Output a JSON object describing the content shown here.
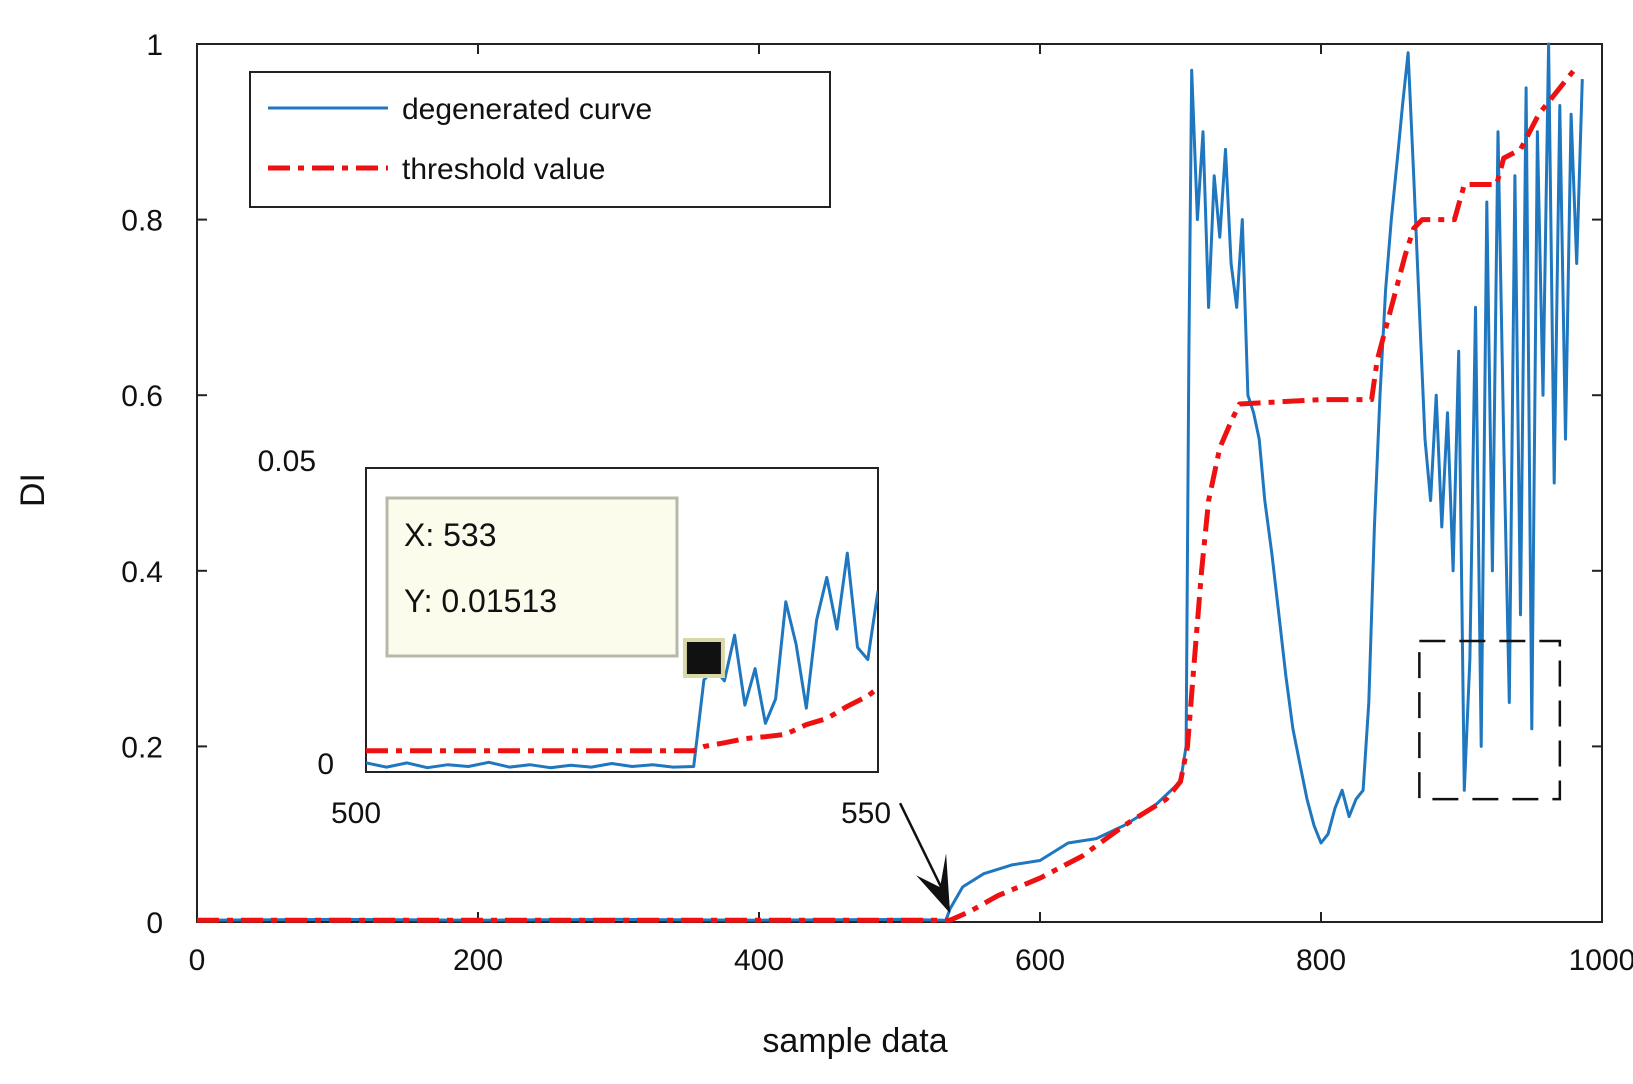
{
  "chart_data": [
    {
      "type": "line",
      "xlabel": "sample data",
      "ylabel": "DI",
      "xlim": [
        0,
        1000
      ],
      "ylim": [
        0,
        1
      ],
      "xticks": [
        0,
        200,
        400,
        600,
        800,
        1000
      ],
      "yticks": [
        0,
        0.2,
        0.4,
        0.6,
        0.8,
        1
      ],
      "xtick_labels": [
        "0",
        "200",
        "400",
        "600",
        "800",
        "1000"
      ],
      "ytick_labels": [
        "0",
        "0.2",
        "0.4",
        "0.6",
        "0.8",
        "1"
      ],
      "legend": {
        "position": "top-left",
        "entries": [
          "degenerated curve",
          "threshold value"
        ]
      },
      "series": [
        {
          "name": "degenerated curve",
          "color": "#1f77c0",
          "style": "solid",
          "points": [
            [
              0,
              0.002
            ],
            [
              100,
              0.003
            ],
            [
              200,
              0.002
            ],
            [
              300,
              0.003
            ],
            [
              400,
              0.002
            ],
            [
              500,
              0.003
            ],
            [
              533,
              0.002
            ],
            [
              536,
              0.015
            ],
            [
              545,
              0.04
            ],
            [
              560,
              0.055
            ],
            [
              580,
              0.065
            ],
            [
              600,
              0.07
            ],
            [
              620,
              0.09
            ],
            [
              640,
              0.095
            ],
            [
              660,
              0.11
            ],
            [
              680,
              0.13
            ],
            [
              700,
              0.16
            ],
            [
              704,
              0.2
            ],
            [
              706,
              0.65
            ],
            [
              708,
              0.97
            ],
            [
              712,
              0.8
            ],
            [
              716,
              0.9
            ],
            [
              720,
              0.7
            ],
            [
              724,
              0.85
            ],
            [
              728,
              0.78
            ],
            [
              732,
              0.88
            ],
            [
              736,
              0.75
            ],
            [
              740,
              0.7
            ],
            [
              744,
              0.8
            ],
            [
              748,
              0.6
            ],
            [
              752,
              0.58
            ],
            [
              756,
              0.55
            ],
            [
              760,
              0.48
            ],
            [
              765,
              0.42
            ],
            [
              770,
              0.35
            ],
            [
              775,
              0.28
            ],
            [
              780,
              0.22
            ],
            [
              785,
              0.18
            ],
            [
              790,
              0.14
            ],
            [
              795,
              0.11
            ],
            [
              800,
              0.09
            ],
            [
              805,
              0.1
            ],
            [
              810,
              0.13
            ],
            [
              815,
              0.15
            ],
            [
              820,
              0.12
            ],
            [
              825,
              0.14
            ],
            [
              830,
              0.15
            ],
            [
              834,
              0.25
            ],
            [
              838,
              0.45
            ],
            [
              842,
              0.6
            ],
            [
              846,
              0.72
            ],
            [
              850,
              0.8
            ],
            [
              855,
              0.88
            ],
            [
              858,
              0.93
            ],
            [
              862,
              0.99
            ],
            [
              866,
              0.85
            ],
            [
              870,
              0.7
            ],
            [
              874,
              0.55
            ],
            [
              878,
              0.48
            ],
            [
              882,
              0.6
            ],
            [
              886,
              0.45
            ],
            [
              890,
              0.58
            ],
            [
              894,
              0.4
            ],
            [
              898,
              0.65
            ],
            [
              902,
              0.15
            ],
            [
              906,
              0.3
            ],
            [
              910,
              0.7
            ],
            [
              914,
              0.2
            ],
            [
              918,
              0.82
            ],
            [
              922,
              0.4
            ],
            [
              926,
              0.9
            ],
            [
              930,
              0.55
            ],
            [
              934,
              0.25
            ],
            [
              938,
              0.85
            ],
            [
              942,
              0.35
            ],
            [
              946,
              0.95
            ],
            [
              950,
              0.22
            ],
            [
              954,
              0.9
            ],
            [
              958,
              0.6
            ],
            [
              962,
              1.0
            ],
            [
              966,
              0.5
            ],
            [
              970,
              0.93
            ],
            [
              974,
              0.55
            ],
            [
              978,
              0.92
            ],
            [
              982,
              0.75
            ],
            [
              986,
              0.96
            ]
          ]
        },
        {
          "name": "threshold value",
          "color": "#ee1111",
          "style": "dashdot",
          "points": [
            [
              0,
              0.002
            ],
            [
              200,
              0.002
            ],
            [
              400,
              0.002
            ],
            [
              536,
              0.002
            ],
            [
              550,
              0.012
            ],
            [
              570,
              0.03
            ],
            [
              600,
              0.05
            ],
            [
              630,
              0.075
            ],
            [
              660,
              0.11
            ],
            [
              690,
              0.14
            ],
            [
              700,
              0.16
            ],
            [
              705,
              0.2
            ],
            [
              710,
              0.3
            ],
            [
              715,
              0.4
            ],
            [
              720,
              0.48
            ],
            [
              728,
              0.54
            ],
            [
              736,
              0.57
            ],
            [
              742,
              0.59
            ],
            [
              800,
              0.595
            ],
            [
              836,
              0.595
            ],
            [
              840,
              0.64
            ],
            [
              850,
              0.7
            ],
            [
              860,
              0.76
            ],
            [
              866,
              0.79
            ],
            [
              872,
              0.8
            ],
            [
              895,
              0.8
            ],
            [
              902,
              0.84
            ],
            [
              925,
              0.84
            ],
            [
              930,
              0.87
            ],
            [
              942,
              0.88
            ],
            [
              955,
              0.92
            ],
            [
              970,
              0.95
            ],
            [
              980,
              0.97
            ]
          ]
        }
      ],
      "annotations": {
        "zoom_box": {
          "x": [
            870,
            970
          ],
          "y": [
            0.14,
            0.32
          ]
        },
        "arrow_target": {
          "x": 536,
          "y": 0.01
        }
      }
    },
    {
      "type": "line",
      "role": "inset",
      "xlim": [
        500,
        550
      ],
      "ylim": [
        0,
        0.05
      ],
      "xtick_labels": [
        "500",
        "550"
      ],
      "ytick_labels": [
        "0",
        "0.05"
      ],
      "series": [
        {
          "name": "degenerated curve",
          "color": "#1f77c0",
          "points": [
            [
              500,
              0.0015
            ],
            [
              502,
              0.0008
            ],
            [
              504,
              0.0015
            ],
            [
              506,
              0.0007
            ],
            [
              508,
              0.0012
            ],
            [
              510,
              0.0009
            ],
            [
              512,
              0.0016
            ],
            [
              514,
              0.0008
            ],
            [
              516,
              0.0012
            ],
            [
              518,
              0.0007
            ],
            [
              520,
              0.0011
            ],
            [
              522,
              0.0008
            ],
            [
              524,
              0.0014
            ],
            [
              526,
              0.0009
            ],
            [
              528,
              0.0012
            ],
            [
              530,
              0.0008
            ],
            [
              532,
              0.0009
            ],
            [
              533,
              0.01513
            ],
            [
              534,
              0.017
            ],
            [
              535,
              0.015
            ],
            [
              536,
              0.0225
            ],
            [
              537,
              0.011
            ],
            [
              538,
              0.017
            ],
            [
              539,
              0.008
            ],
            [
              540,
              0.012
            ],
            [
              541,
              0.028
            ],
            [
              542,
              0.021
            ],
            [
              543,
              0.0105
            ],
            [
              544,
              0.025
            ],
            [
              545,
              0.032
            ],
            [
              546,
              0.0235
            ],
            [
              547,
              0.036
            ],
            [
              548,
              0.0205
            ],
            [
              549,
              0.0185
            ],
            [
              550,
              0.0298
            ]
          ]
        },
        {
          "name": "threshold value",
          "color": "#ee1111",
          "points": [
            [
              500,
              0.0035
            ],
            [
              510,
              0.0035
            ],
            [
              520,
              0.0035
            ],
            [
              532,
              0.0035
            ],
            [
              533,
              0.0042
            ],
            [
              535,
              0.0048
            ],
            [
              537,
              0.0055
            ],
            [
              539,
              0.0058
            ],
            [
              541,
              0.0062
            ],
            [
              543,
              0.0078
            ],
            [
              545,
              0.0088
            ],
            [
              547,
              0.0108
            ],
            [
              549,
              0.0125
            ],
            [
              550,
              0.0138
            ]
          ]
        }
      ],
      "datatip": {
        "x_label": "X: 533",
        "y_label": "Y: 0.01513",
        "x": 533,
        "y": 0.01513
      }
    }
  ]
}
